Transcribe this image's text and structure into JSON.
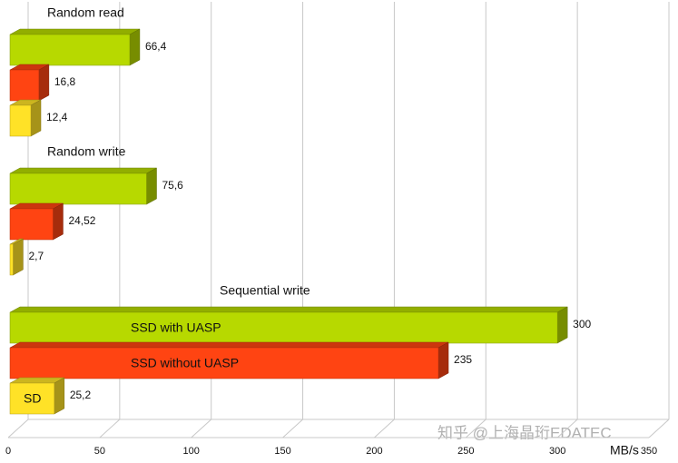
{
  "chart_data": {
    "type": "bar",
    "orientation": "horizontal",
    "categories": [
      "Random read",
      "Random write",
      "Sequential write"
    ],
    "series": [
      {
        "name": "SSD with UASP",
        "color": "#b7d900",
        "values": [
          66.4,
          75.6,
          300
        ],
        "value_labels": [
          "66,4",
          "75,6",
          "300"
        ]
      },
      {
        "name": "SSD without UASP",
        "color": "#ff4412",
        "values": [
          16.8,
          24.52,
          235
        ],
        "value_labels": [
          "16,8",
          "24,52",
          "235"
        ]
      },
      {
        "name": "SD",
        "color": "#ffe227",
        "values": [
          12.4,
          2.7,
          25.2
        ],
        "value_labels": [
          "12,4",
          "2,7",
          "25,2"
        ]
      }
    ],
    "xlim": [
      0,
      350
    ],
    "xticks": [
      0,
      50,
      100,
      150,
      200,
      250,
      300,
      350
    ],
    "x_axis_label": "MB/s",
    "grid": true,
    "watermark": "知乎 @上海晶珩EDATEC"
  }
}
